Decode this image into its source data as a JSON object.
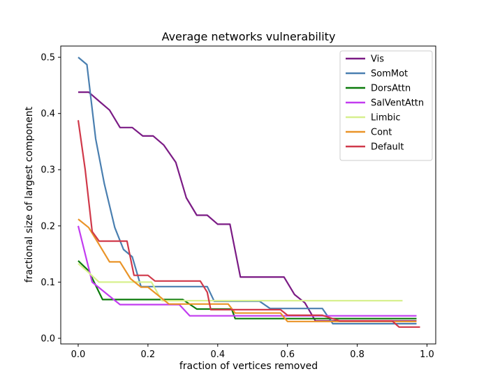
{
  "chart_data": {
    "type": "line",
    "title": "Average networks vulnerability",
    "xlabel": "fraction of vertices removed",
    "ylabel": "fractional size of largest component",
    "xlim": [
      -0.05,
      1.025
    ],
    "ylim": [
      -0.01,
      0.52
    ],
    "xticks": [
      0.0,
      0.2,
      0.4,
      0.6,
      0.8,
      1.0
    ],
    "xtick_labels": [
      "0.0",
      "0.2",
      "0.4",
      "0.6",
      "0.8",
      "1.0"
    ],
    "yticks": [
      0.0,
      0.1,
      0.2,
      0.3,
      0.4,
      0.5
    ],
    "ytick_labels": [
      "0.0",
      "0.1",
      "0.2",
      "0.3",
      "0.4",
      "0.5"
    ],
    "grid": false,
    "legend_position": "top-right",
    "series": [
      {
        "name": "Vis",
        "color": "#7b1b85",
        "points": [
          [
            0.0,
            0.438
          ],
          [
            0.03,
            0.438
          ],
          [
            0.06,
            0.422
          ],
          [
            0.09,
            0.406
          ],
          [
            0.12,
            0.375
          ],
          [
            0.155,
            0.375
          ],
          [
            0.185,
            0.36
          ],
          [
            0.215,
            0.36
          ],
          [
            0.245,
            0.344
          ],
          [
            0.28,
            0.313
          ],
          [
            0.31,
            0.25
          ],
          [
            0.34,
            0.219
          ],
          [
            0.37,
            0.219
          ],
          [
            0.4,
            0.203
          ],
          [
            0.435,
            0.203
          ],
          [
            0.465,
            0.109
          ],
          [
            0.49,
            0.109
          ],
          [
            0.59,
            0.109
          ],
          [
            0.62,
            0.078
          ],
          [
            0.65,
            0.063
          ],
          [
            0.68,
            0.031
          ],
          [
            0.97,
            0.031
          ]
        ]
      },
      {
        "name": "SomMot",
        "color": "#4a7fb0",
        "points": [
          [
            0.0,
            0.5
          ],
          [
            0.025,
            0.487
          ],
          [
            0.05,
            0.355
          ],
          [
            0.075,
            0.275
          ],
          [
            0.105,
            0.197
          ],
          [
            0.13,
            0.158
          ],
          [
            0.155,
            0.145
          ],
          [
            0.18,
            0.092
          ],
          [
            0.22,
            0.092
          ],
          [
            0.37,
            0.092
          ],
          [
            0.39,
            0.066
          ],
          [
            0.52,
            0.066
          ],
          [
            0.55,
            0.053
          ],
          [
            0.7,
            0.053
          ],
          [
            0.73,
            0.026
          ],
          [
            0.97,
            0.026
          ]
        ]
      },
      {
        "name": "DorsAttn",
        "color": "#0b7a0b",
        "points": [
          [
            0.0,
            0.138
          ],
          [
            0.03,
            0.12
          ],
          [
            0.07,
            0.069
          ],
          [
            0.1,
            0.069
          ],
          [
            0.3,
            0.069
          ],
          [
            0.34,
            0.052
          ],
          [
            0.44,
            0.052
          ],
          [
            0.45,
            0.035
          ],
          [
            0.97,
            0.035
          ]
        ]
      },
      {
        "name": "SalVentAttn",
        "color": "#c23cf0",
        "points": [
          [
            0.0,
            0.2
          ],
          [
            0.04,
            0.1
          ],
          [
            0.08,
            0.08
          ],
          [
            0.12,
            0.06
          ],
          [
            0.16,
            0.06
          ],
          [
            0.29,
            0.06
          ],
          [
            0.32,
            0.04
          ],
          [
            0.97,
            0.04
          ]
        ]
      },
      {
        "name": "Limbic",
        "color": "#d7f08e",
        "points": [
          [
            0.0,
            0.133
          ],
          [
            0.03,
            0.117
          ],
          [
            0.06,
            0.1
          ],
          [
            0.09,
            0.1
          ],
          [
            0.21,
            0.1
          ],
          [
            0.24,
            0.067
          ],
          [
            0.93,
            0.067
          ]
        ]
      },
      {
        "name": "Cont",
        "color": "#ea9428",
        "points": [
          [
            0.0,
            0.212
          ],
          [
            0.03,
            0.197
          ],
          [
            0.06,
            0.167
          ],
          [
            0.09,
            0.136
          ],
          [
            0.12,
            0.136
          ],
          [
            0.15,
            0.106
          ],
          [
            0.18,
            0.091
          ],
          [
            0.2,
            0.091
          ],
          [
            0.26,
            0.061
          ],
          [
            0.34,
            0.061
          ],
          [
            0.37,
            0.061
          ],
          [
            0.43,
            0.061
          ],
          [
            0.45,
            0.045
          ],
          [
            0.58,
            0.045
          ],
          [
            0.6,
            0.03
          ],
          [
            0.97,
            0.03
          ]
        ]
      },
      {
        "name": "Default",
        "color": "#d0394a",
        "points": [
          [
            0.0,
            0.388
          ],
          [
            0.02,
            0.3
          ],
          [
            0.04,
            0.19
          ],
          [
            0.06,
            0.173
          ],
          [
            0.09,
            0.173
          ],
          [
            0.14,
            0.173
          ],
          [
            0.16,
            0.112
          ],
          [
            0.2,
            0.112
          ],
          [
            0.22,
            0.102
          ],
          [
            0.26,
            0.102
          ],
          [
            0.35,
            0.102
          ],
          [
            0.37,
            0.082
          ],
          [
            0.38,
            0.051
          ],
          [
            0.42,
            0.051
          ],
          [
            0.47,
            0.051
          ],
          [
            0.58,
            0.051
          ],
          [
            0.6,
            0.041
          ],
          [
            0.7,
            0.041
          ],
          [
            0.75,
            0.031
          ],
          [
            0.9,
            0.031
          ],
          [
            0.92,
            0.02
          ],
          [
            0.98,
            0.02
          ]
        ]
      }
    ]
  }
}
